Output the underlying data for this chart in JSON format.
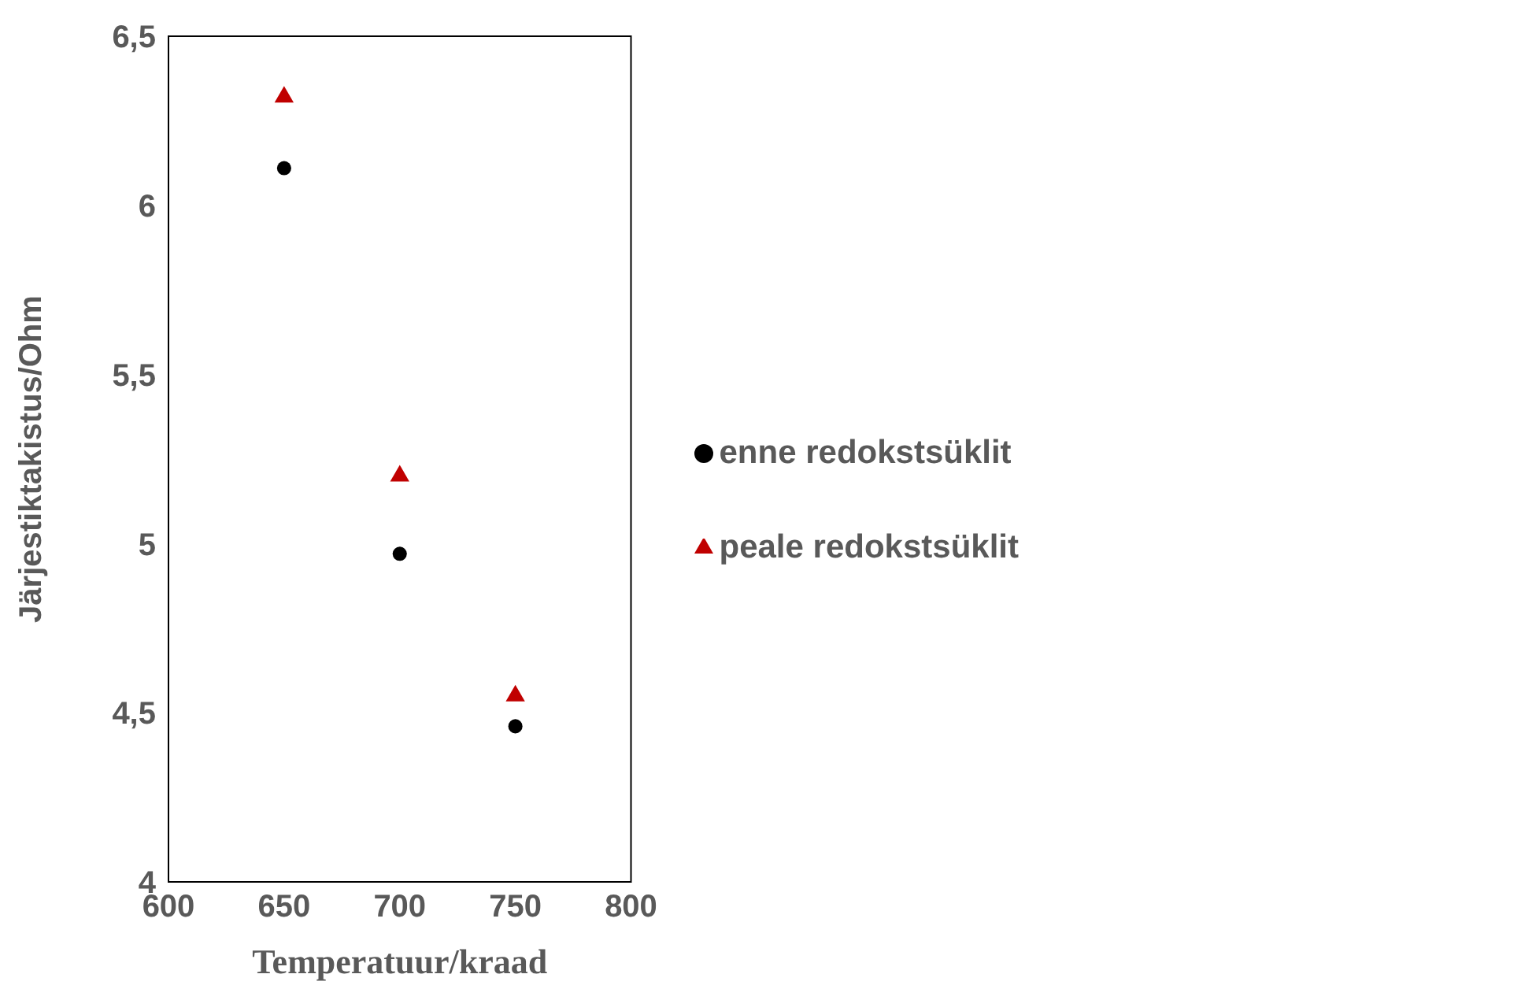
{
  "chart_data": {
    "type": "scatter",
    "xlabel": "Temperatuur/kraad",
    "ylabel": "Järjestiktakistus/Ohm",
    "x": [
      650,
      700,
      750
    ],
    "series": [
      {
        "name": "enne redokstsüklit",
        "color": "#000000",
        "marker": "circle",
        "values": [
          6.11,
          4.97,
          4.46
        ]
      },
      {
        "name": "peale redokstsüklit",
        "color": "#c00000",
        "marker": "triangle",
        "values": [
          6.32,
          5.2,
          4.55
        ]
      }
    ],
    "xlim": [
      600,
      800
    ],
    "xticks": [
      600,
      650,
      700,
      750,
      800
    ],
    "ylim": [
      4,
      6.5
    ],
    "yticks": [
      4,
      {
        "value": 4.5,
        "label": "4,5"
      },
      5,
      {
        "value": 5.5,
        "label": "5,5"
      },
      6,
      {
        "value": 6.5,
        "label": "6,5"
      }
    ],
    "grid": false,
    "legend": "right"
  }
}
